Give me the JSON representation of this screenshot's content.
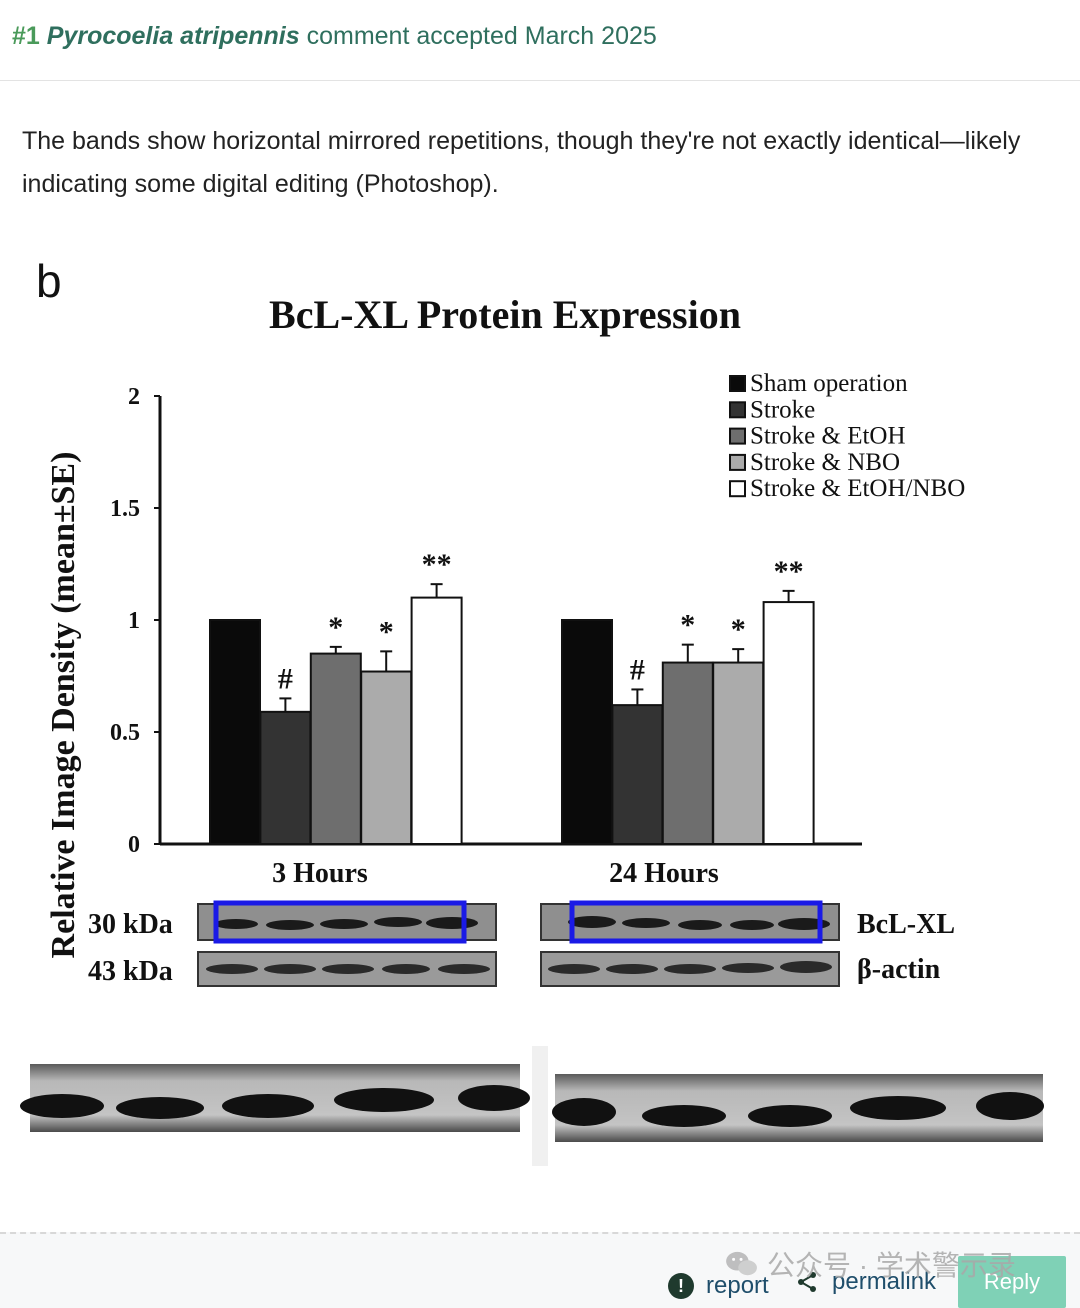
{
  "header": {
    "number": "#1",
    "species": "Pyrocoelia atripennis",
    "status": "comment accepted March 2025"
  },
  "comment": {
    "text": "The bands show horizontal mirrored repetitions, though they're not exactly identical—likely indicating some digital editing (Photoshop)."
  },
  "figure": {
    "panel_label": "b",
    "blot_labels": {
      "bcl_kda": "30 kDa",
      "actin_kda": "43 kDa",
      "bcl_name": "BcL-XL",
      "actin_name": "β-actin"
    },
    "highlight_color": "#1a1ae6"
  },
  "chart_data": {
    "type": "bar",
    "title": "BcL-XL Protein Expression",
    "ylabel": "Relative Image Density (mean±SE)",
    "xlabel": "",
    "ylim": [
      0,
      2
    ],
    "yticks": [
      "0",
      "0.5",
      "1",
      "1.5",
      "2"
    ],
    "categories": [
      "3 Hours",
      "24 Hours"
    ],
    "series": [
      {
        "name": "Sham operation",
        "color": "#0a0a0a",
        "values": [
          1.0,
          1.0
        ],
        "errors": [
          0.0,
          0.0
        ],
        "marks": [
          "",
          ""
        ]
      },
      {
        "name": "Stroke",
        "color": "#333333",
        "values": [
          0.59,
          0.62
        ],
        "errors": [
          0.06,
          0.07
        ],
        "marks": [
          "#",
          "#"
        ]
      },
      {
        "name": "Stroke & EtOH",
        "color": "#6e6e6e",
        "values": [
          0.85,
          0.81
        ],
        "errors": [
          0.03,
          0.08
        ],
        "marks": [
          "*",
          "*"
        ]
      },
      {
        "name": "Stroke & NBO",
        "color": "#ababab",
        "values": [
          0.77,
          0.81
        ],
        "errors": [
          0.09,
          0.06
        ],
        "marks": [
          "*",
          "*"
        ]
      },
      {
        "name": "Stroke & EtOH/NBO",
        "color": "#ffffff",
        "values": [
          1.1,
          1.08
        ],
        "errors": [
          0.06,
          0.05
        ],
        "marks": [
          "**",
          "**"
        ]
      }
    ],
    "legend_position": "top-right",
    "grid": false
  },
  "footer": {
    "report_label": "report",
    "permalink_label": "permalink",
    "reply_label": "Reply",
    "watermark": "公众号 · 学术警示录"
  },
  "colors": {
    "header_text": "#2f6f5e",
    "number": "#4a9a5a",
    "reply_bg": "#7fd1b6",
    "link": "#1f4e6b"
  }
}
